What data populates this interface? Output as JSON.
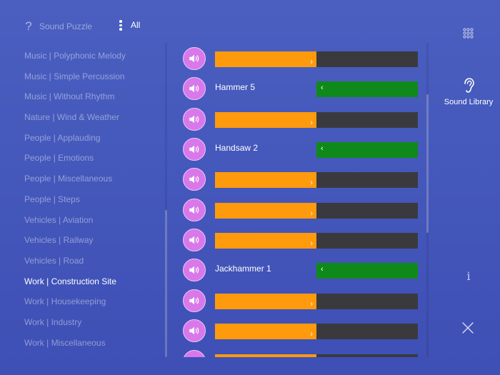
{
  "header": {
    "help_icon": "?",
    "app_title": "Sound Puzzle",
    "filter_label": "All"
  },
  "categories": [
    {
      "label": "Music | Polyphonic Melody",
      "active": false
    },
    {
      "label": "Music | Simple Percussion",
      "active": false
    },
    {
      "label": "Music | Without Rhythm",
      "active": false
    },
    {
      "label": "Nature | Wind & Weather",
      "active": false
    },
    {
      "label": "People | Applauding",
      "active": false
    },
    {
      "label": "People | Emotions",
      "active": false
    },
    {
      "label": "People | Miscellaneous",
      "active": false
    },
    {
      "label": "People | Steps",
      "active": false
    },
    {
      "label": "Vehicles | Aviation",
      "active": false
    },
    {
      "label": "Vehicles | Railway",
      "active": false
    },
    {
      "label": "Vehicles | Road",
      "active": false
    },
    {
      "label": "Work | Construction Site",
      "active": true
    },
    {
      "label": "Work | Housekeeping",
      "active": false
    },
    {
      "label": "Work | Industry",
      "active": false
    },
    {
      "label": "Work | Miscellaneous",
      "active": false
    }
  ],
  "sounds": [
    {
      "type": "bar",
      "fill": 0.5
    },
    {
      "type": "named",
      "label": "Hammer 5"
    },
    {
      "type": "bar",
      "fill": 0.5
    },
    {
      "type": "named",
      "label": "Handsaw 2"
    },
    {
      "type": "bar",
      "fill": 0.5
    },
    {
      "type": "bar",
      "fill": 0.5
    },
    {
      "type": "bar",
      "fill": 0.5
    },
    {
      "type": "named",
      "label": "Jackhammer 1"
    },
    {
      "type": "bar",
      "fill": 0.5
    },
    {
      "type": "bar",
      "fill": 0.5
    },
    {
      "type": "bar",
      "fill": 0.5
    }
  ],
  "sidebar": {
    "library_label": "Sound Library",
    "info_icon": "i"
  },
  "colors": {
    "background": "#4a5fc0",
    "play_button": "#d878ea",
    "bar_orange": "#ff9a0c",
    "bar_green": "#0f8a1a",
    "bar_track": "#3a3a3e"
  },
  "icons": {
    "row_button": "speaker-icon",
    "grid": "grid-icon",
    "library": "ear-icon",
    "info": "info-icon",
    "close": "close-icon",
    "filter": "kebab-icon"
  }
}
